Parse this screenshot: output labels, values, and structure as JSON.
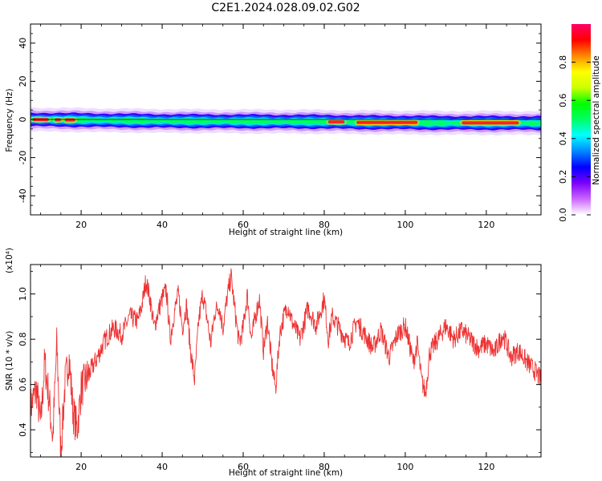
{
  "title": "C2E1.2024.028.09.02.G02",
  "chart_data": [
    {
      "type": "heatmap",
      "name": "spectrogram",
      "xlabel": "Height of straight line (km)",
      "ylabel": "Frequency (Hz)",
      "xlim": [
        7.5,
        133.5
      ],
      "ylim": [
        -50,
        50
      ],
      "x_ticks": [
        20,
        40,
        60,
        80,
        100,
        120
      ],
      "y_ticks": [
        -40,
        -20,
        0,
        20,
        40
      ],
      "colorbar": {
        "label": "Normalized spectral amplitude",
        "range": [
          0,
          1
        ],
        "ticks": [
          "0.0",
          "0.2",
          "0.4",
          "0.6",
          "0.8"
        ],
        "colors": [
          "#ffffff",
          "#cc66ff",
          "#7a00ff",
          "#0000ff",
          "#0088ff",
          "#00ffff",
          "#00ff66",
          "#00ff00",
          "#ccff00",
          "#ffff00",
          "#ff8800",
          "#ff0000",
          "#ff0066"
        ]
      },
      "band": {
        "center_frequency_hz": [
          [
            7.5,
            0
          ],
          [
            20,
            -0.3
          ],
          [
            40,
            -0.8
          ],
          [
            60,
            -1.0
          ],
          [
            80,
            -1.2
          ],
          [
            90,
            -1.5
          ],
          [
            100,
            -1.6
          ],
          [
            110,
            -1.8
          ],
          [
            120,
            -1.8
          ],
          [
            133.5,
            -1.9
          ]
        ],
        "half_width_hz": 2.6,
        "peak_segments_km": [
          [
            8,
            12
          ],
          [
            13.5,
            15
          ],
          [
            16,
            18.5
          ],
          [
            81,
            85
          ],
          [
            88,
            103
          ],
          [
            114,
            128
          ]
        ]
      },
      "grid": false
    },
    {
      "type": "line",
      "name": "snr",
      "xlabel": "Height of straight line (km)",
      "ylabel": "SNR (10 * v/v)",
      "y_multiplier": "(x10⁴)",
      "xlim": [
        7.5,
        133.5
      ],
      "ylim": [
        0.28,
        1.13
      ],
      "x_ticks": [
        20,
        40,
        60,
        80,
        100,
        120
      ],
      "y_ticks": [
        0.4,
        0.6,
        0.8,
        1.0
      ],
      "color": "#ee3333",
      "series": [
        {
          "x": [
            7.5,
            9,
            10,
            11,
            12,
            13,
            14,
            15,
            16,
            17,
            18,
            19,
            20,
            22,
            24,
            26,
            28,
            30,
            32,
            34,
            35,
            36,
            37,
            38,
            39,
            40,
            41,
            42,
            43,
            44,
            45,
            46,
            47,
            48,
            49,
            50,
            51,
            52,
            53,
            54,
            55,
            56,
            57,
            58,
            59,
            60,
            61,
            62,
            63,
            64,
            65,
            66,
            67,
            68,
            69,
            70,
            71,
            72,
            74,
            76,
            78,
            80,
            81,
            82,
            84,
            86,
            88,
            90,
            92,
            94,
            96,
            98,
            100,
            102,
            103,
            104,
            105,
            106,
            108,
            110,
            112,
            114,
            116,
            118,
            120,
            122,
            124,
            125,
            126,
            128,
            130,
            132,
            133.5
          ],
          "y": [
            0.5,
            0.58,
            0.42,
            0.7,
            0.55,
            0.36,
            0.78,
            0.3,
            0.6,
            0.72,
            0.48,
            0.4,
            0.58,
            0.65,
            0.72,
            0.8,
            0.85,
            0.82,
            0.9,
            0.88,
            0.95,
            1.06,
            0.98,
            0.85,
            0.92,
            0.98,
            1.02,
            0.8,
            0.92,
            1.0,
            0.85,
            0.95,
            0.75,
            0.62,
            0.88,
            1.0,
            0.9,
            0.78,
            0.92,
            0.95,
            0.85,
            0.98,
            1.08,
            0.92,
            0.78,
            0.85,
            1.0,
            0.8,
            0.9,
            0.98,
            0.75,
            0.88,
            0.7,
            0.58,
            0.82,
            0.9,
            0.95,
            0.88,
            0.8,
            0.94,
            0.86,
            0.98,
            0.8,
            0.9,
            0.84,
            0.78,
            0.88,
            0.82,
            0.76,
            0.84,
            0.72,
            0.82,
            0.86,
            0.7,
            0.78,
            0.62,
            0.56,
            0.74,
            0.8,
            0.86,
            0.8,
            0.84,
            0.8,
            0.76,
            0.78,
            0.74,
            0.82,
            0.78,
            0.72,
            0.75,
            0.7,
            0.66,
            0.62
          ]
        }
      ],
      "grid": false
    }
  ]
}
